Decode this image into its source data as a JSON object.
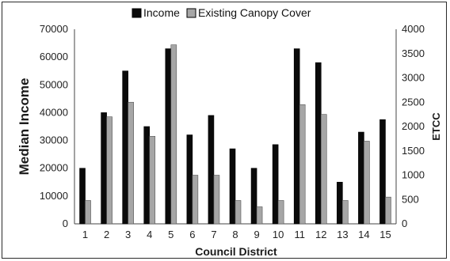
{
  "chart_data": {
    "type": "bar",
    "title": "",
    "xlabel": "Council District",
    "ylabel_left": "Median Income",
    "ylabel_right": "ETCC",
    "categories": [
      "1",
      "2",
      "3",
      "4",
      "5",
      "6",
      "7",
      "8",
      "9",
      "10",
      "11",
      "12",
      "13",
      "14",
      "15"
    ],
    "ylim_left": [
      0,
      70000
    ],
    "yticks_left": [
      "0",
      "10000",
      "20000",
      "30000",
      "40000",
      "50000",
      "60000",
      "70000"
    ],
    "ylim_right": [
      0,
      4000
    ],
    "yticks_right": [
      "0",
      "500",
      "1000",
      "1500",
      "2000",
      "2500",
      "3000",
      "3500",
      "4000"
    ],
    "grid": false,
    "legend_position": "top-center",
    "series": [
      {
        "name": "Income",
        "axis": "left",
        "color": "#0a0a0a",
        "values": [
          20000,
          40000,
          55000,
          35000,
          63000,
          32000,
          39000,
          27000,
          20000,
          28500,
          63000,
          58000,
          15000,
          33000,
          37500
        ]
      },
      {
        "name": "Existing Canopy Cover",
        "axis": "right",
        "color": "#a6a6a6",
        "values": [
          480,
          2200,
          2500,
          1800,
          3680,
          1000,
          1000,
          480,
          350,
          480,
          2450,
          2250,
          480,
          1700,
          550
        ]
      }
    ]
  }
}
